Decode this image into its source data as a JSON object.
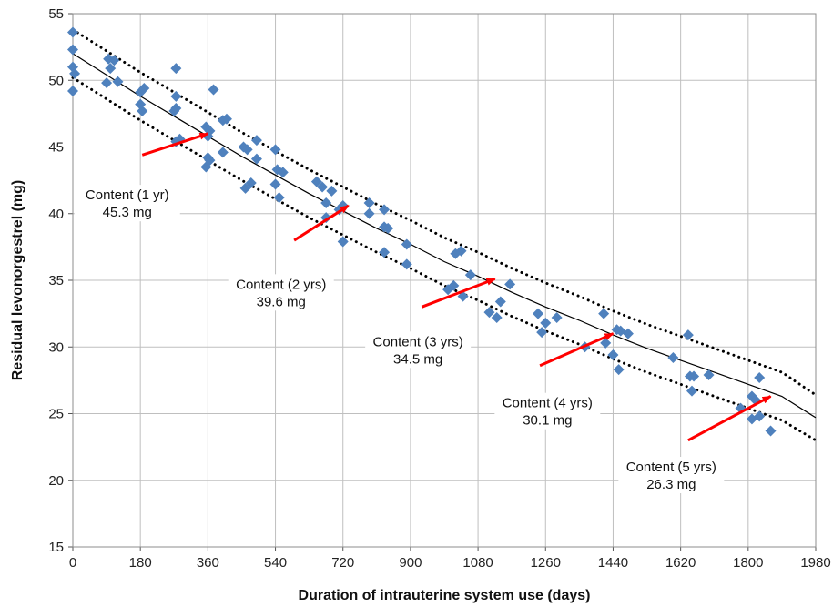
{
  "chart_data": {
    "type": "scatter",
    "xlabel": "Duration of intrauterine system use (days)",
    "ylabel": "Residual levonorgestrel (mg)",
    "xlim": [
      0,
      1980
    ],
    "ylim": [
      15,
      55
    ],
    "xticks": [
      0,
      180,
      360,
      540,
      720,
      900,
      1080,
      1260,
      1440,
      1620,
      1800,
      1980
    ],
    "yticks": [
      15,
      20,
      25,
      30,
      35,
      40,
      45,
      50,
      55
    ],
    "grid": true,
    "colors": {
      "points": "#4f81bd",
      "fit": "#000000",
      "arrows": "#ff0000",
      "grid": "#bfbfbf"
    },
    "points": [
      [
        0,
        53.6
      ],
      [
        0,
        52.3
      ],
      [
        0,
        51.0
      ],
      [
        5,
        50.5
      ],
      [
        0,
        49.2
      ],
      [
        95,
        51.6
      ],
      [
        100,
        50.9
      ],
      [
        110,
        51.5
      ],
      [
        90,
        49.8
      ],
      [
        120,
        49.9
      ],
      [
        180,
        49.1
      ],
      [
        190,
        49.4
      ],
      [
        180,
        48.2
      ],
      [
        185,
        47.7
      ],
      [
        275,
        50.9
      ],
      [
        275,
        48.8
      ],
      [
        275,
        47.9
      ],
      [
        270,
        47.7
      ],
      [
        275,
        45.4
      ],
      [
        285,
        45.6
      ],
      [
        355,
        46.5
      ],
      [
        365,
        46.2
      ],
      [
        360,
        45.8
      ],
      [
        360,
        44.2
      ],
      [
        355,
        43.5
      ],
      [
        375,
        49.3
      ],
      [
        400,
        47.0
      ],
      [
        410,
        47.1
      ],
      [
        400,
        44.6
      ],
      [
        365,
        44.0
      ],
      [
        455,
        45.0
      ],
      [
        465,
        44.8
      ],
      [
        490,
        45.5
      ],
      [
        490,
        44.1
      ],
      [
        460,
        41.9
      ],
      [
        475,
        42.3
      ],
      [
        540,
        44.8
      ],
      [
        545,
        43.3
      ],
      [
        560,
        43.1
      ],
      [
        540,
        42.2
      ],
      [
        550,
        41.2
      ],
      [
        650,
        42.4
      ],
      [
        665,
        42.0
      ],
      [
        690,
        41.7
      ],
      [
        675,
        40.8
      ],
      [
        675,
        39.7
      ],
      [
        710,
        40.3
      ],
      [
        720,
        40.6
      ],
      [
        720,
        37.9
      ],
      [
        790,
        40.8
      ],
      [
        790,
        40.0
      ],
      [
        830,
        40.3
      ],
      [
        830,
        39.0
      ],
      [
        840,
        38.9
      ],
      [
        830,
        37.1
      ],
      [
        890,
        37.7
      ],
      [
        890,
        36.2
      ],
      [
        1020,
        37.0
      ],
      [
        1035,
        37.2
      ],
      [
        1000,
        34.3
      ],
      [
        1015,
        34.6
      ],
      [
        1040,
        33.8
      ],
      [
        1060,
        35.4
      ],
      [
        1110,
        32.6
      ],
      [
        1130,
        32.2
      ],
      [
        1140,
        33.4
      ],
      [
        1165,
        34.7
      ],
      [
        1240,
        32.5
      ],
      [
        1260,
        31.8
      ],
      [
        1250,
        31.1
      ],
      [
        1290,
        32.2
      ],
      [
        1365,
        30.0
      ],
      [
        1415,
        32.5
      ],
      [
        1420,
        30.3
      ],
      [
        1440,
        29.4
      ],
      [
        1450,
        31.3
      ],
      [
        1460,
        31.2
      ],
      [
        1480,
        31.0
      ],
      [
        1455,
        28.3
      ],
      [
        1600,
        29.2
      ],
      [
        1640,
        30.9
      ],
      [
        1645,
        27.8
      ],
      [
        1655,
        27.8
      ],
      [
        1650,
        26.7
      ],
      [
        1695,
        27.9
      ],
      [
        1780,
        25.4
      ],
      [
        1810,
        26.3
      ],
      [
        1820,
        26.0
      ],
      [
        1830,
        27.7
      ],
      [
        1810,
        24.6
      ],
      [
        1830,
        24.8
      ],
      [
        1860,
        23.7
      ]
    ],
    "fit": {
      "name": "",
      "x": [
        0,
        90,
        180,
        270,
        360,
        450,
        540,
        630,
        720,
        810,
        900,
        990,
        1080,
        1170,
        1260,
        1350,
        1440,
        1530,
        1620,
        1710,
        1800,
        1890,
        1980
      ],
      "y": [
        52.0,
        50.4,
        48.8,
        47.3,
        45.8,
        44.3,
        42.9,
        41.5,
        40.2,
        38.9,
        37.7,
        36.4,
        35.3,
        34.1,
        33.0,
        32.0,
        30.9,
        29.9,
        29.0,
        28.1,
        27.2,
        26.3,
        24.7
      ]
    },
    "upper_band": {
      "x": [
        0,
        90,
        180,
        270,
        360,
        450,
        540,
        630,
        720,
        810,
        900,
        990,
        1080,
        1170,
        1260,
        1350,
        1440,
        1530,
        1620,
        1710,
        1800,
        1890,
        1980
      ],
      "y": [
        53.8,
        52.2,
        50.6,
        49.1,
        47.6,
        46.1,
        44.7,
        43.3,
        42.0,
        40.7,
        39.5,
        38.2,
        37.1,
        35.9,
        34.8,
        33.8,
        32.7,
        31.7,
        30.8,
        29.9,
        29.0,
        28.1,
        26.4
      ]
    },
    "lower_band": {
      "x": [
        0,
        90,
        180,
        270,
        360,
        450,
        540,
        630,
        720,
        810,
        900,
        990,
        1080,
        1170,
        1260,
        1350,
        1440,
        1530,
        1620,
        1710,
        1800,
        1890,
        1980
      ],
      "y": [
        50.2,
        48.6,
        47.0,
        45.5,
        44.0,
        42.5,
        41.1,
        39.7,
        38.4,
        37.1,
        35.9,
        34.6,
        33.5,
        32.3,
        31.2,
        30.2,
        29.1,
        28.1,
        27.2,
        26.3,
        25.4,
        24.5,
        23.0
      ]
    },
    "annotations": [
      {
        "line1": "Content (1 yr)",
        "line2": "45.3 mg",
        "tx": 145,
        "ty": 41.2,
        "arrow_from": [
          185,
          44.4
        ],
        "arrow_to": [
          360,
          46.0
        ]
      },
      {
        "line1": "Content (2 yrs)",
        "line2": "39.6 mg",
        "tx": 555,
        "ty": 34.5,
        "arrow_from": [
          590,
          38.0
        ],
        "arrow_to": [
          735,
          40.6
        ]
      },
      {
        "line1": "Content (3 yrs)",
        "line2": "34.5 mg",
        "tx": 920,
        "ty": 30.2,
        "arrow_from": [
          930,
          33.0
        ],
        "arrow_to": [
          1125,
          35.1
        ]
      },
      {
        "line1": "Content (4 yrs)",
        "line2": "30.1 mg",
        "tx": 1265,
        "ty": 25.6,
        "arrow_from": [
          1245,
          28.6
        ],
        "arrow_to": [
          1440,
          31.0
        ]
      },
      {
        "line1": "Content (5 yrs)",
        "line2": "26.3 mg",
        "tx": 1595,
        "ty": 20.8,
        "arrow_from": [
          1640,
          23.0
        ],
        "arrow_to": [
          1860,
          26.3
        ]
      }
    ]
  }
}
